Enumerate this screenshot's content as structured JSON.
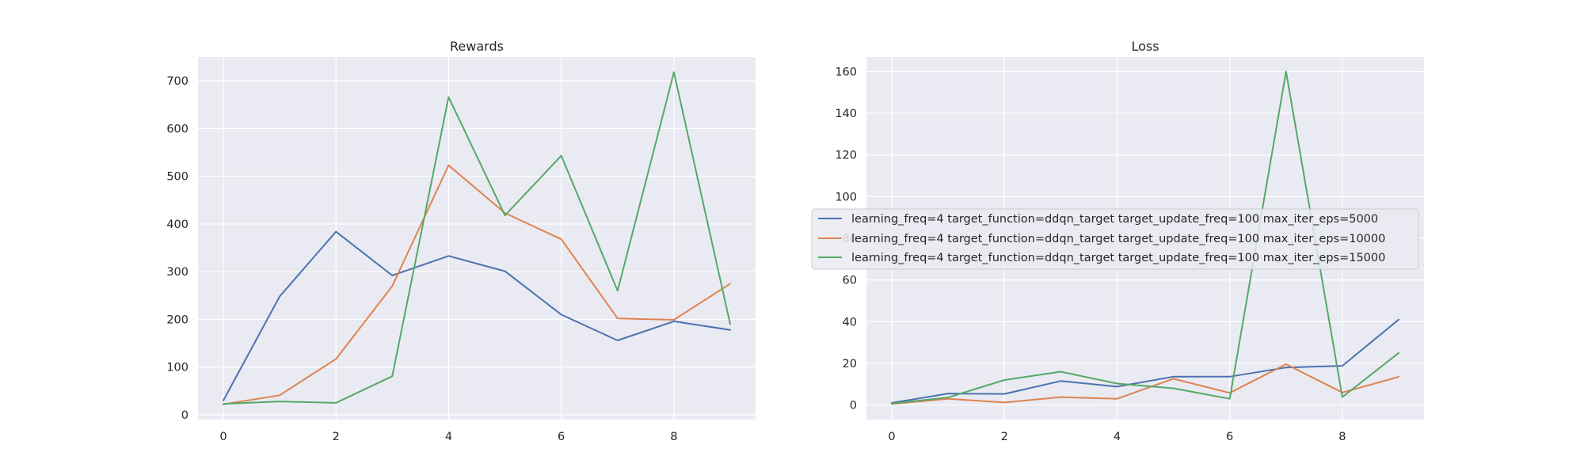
{
  "chart_data": [
    {
      "type": "line",
      "title": "Rewards",
      "xlabel": "",
      "ylabel": "",
      "x": [
        0,
        1,
        2,
        3,
        4,
        5,
        6,
        7,
        8,
        9
      ],
      "xticks": [
        0,
        2,
        4,
        6,
        8
      ],
      "xlim": [
        -0.45,
        9.45
      ],
      "yticks": [
        0,
        100,
        200,
        300,
        400,
        500,
        600,
        700
      ],
      "ylim": [
        -10,
        750
      ],
      "grid": true,
      "series": [
        {
          "color": "#4c72b0",
          "values": [
            30,
            248,
            384,
            292,
            333,
            301,
            210,
            156,
            196,
            178
          ]
        },
        {
          "color": "#dd8452",
          "values": [
            22,
            41,
            117,
            270,
            523,
            423,
            368,
            202,
            199,
            275
          ]
        },
        {
          "color": "#55a868",
          "values": [
            23,
            28,
            25,
            81,
            666,
            418,
            543,
            260,
            718,
            190
          ]
        }
      ]
    },
    {
      "type": "line",
      "title": "Loss",
      "xlabel": "",
      "ylabel": "",
      "x": [
        0,
        1,
        2,
        3,
        4,
        5,
        6,
        7,
        8,
        9
      ],
      "xticks": [
        0,
        2,
        4,
        6,
        8
      ],
      "xlim": [
        -0.45,
        9.45
      ],
      "yticks": [
        0,
        20,
        40,
        60,
        80,
        100,
        120,
        140,
        160
      ],
      "ylim": [
        -7,
        167
      ],
      "grid": true,
      "legend_position": "center",
      "series": [
        {
          "name": "learning_freq=4 target_function=ddqn_target target_update_freq=100 max_iter_eps=5000",
          "color": "#4c72b0",
          "values": [
            1,
            5.5,
            5.3,
            11.5,
            8.8,
            13.6,
            13.6,
            18,
            18.8,
            41
          ]
        },
        {
          "name": "learning_freq=4 target_function=ddqn_target target_update_freq=100 max_iter_eps=10000",
          "color": "#dd8452",
          "values": [
            0.5,
            3,
            1.2,
            3.8,
            3,
            12.6,
            5.8,
            19.6,
            6,
            13.5
          ]
        },
        {
          "name": "learning_freq=4 target_function=ddqn_target target_update_freq=100 max_iter_eps=15000",
          "color": "#55a868",
          "values": [
            0.7,
            3.6,
            12,
            16,
            10.3,
            8,
            3,
            160,
            3.8,
            25
          ]
        }
      ]
    }
  ]
}
